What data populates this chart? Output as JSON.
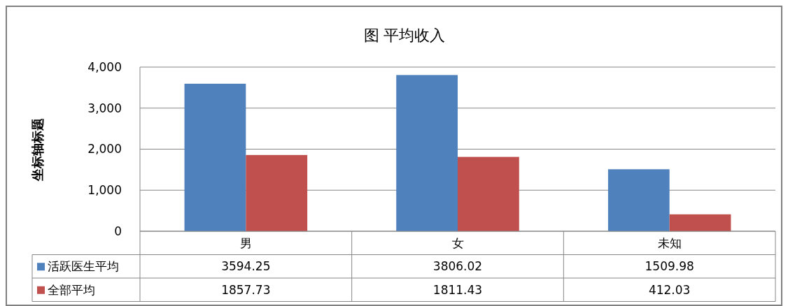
{
  "chart_data": {
    "type": "bar",
    "title": "图 平均收入",
    "ylabel": "坐标轴标题",
    "categories": [
      "男",
      "女",
      "未知"
    ],
    "series": [
      {
        "name": "活跃医生平均",
        "color": "#4f81bd",
        "values": [
          3594.25,
          3806.02,
          1509.98
        ]
      },
      {
        "name": "全部平均",
        "color": "#c0504d",
        "values": [
          1857.73,
          1811.43,
          412.03
        ]
      }
    ],
    "ylim": [
      0,
      4000
    ],
    "yticks": [
      0,
      {
        "value": 1000,
        "label": "1,000"
      },
      {
        "value": 2000,
        "label": "2,000"
      },
      {
        "value": 3000,
        "label": "3,000"
      },
      {
        "value": 4000,
        "label": "4,000"
      }
    ],
    "grid": "y",
    "legend": "bottom",
    "data_labels": true
  }
}
